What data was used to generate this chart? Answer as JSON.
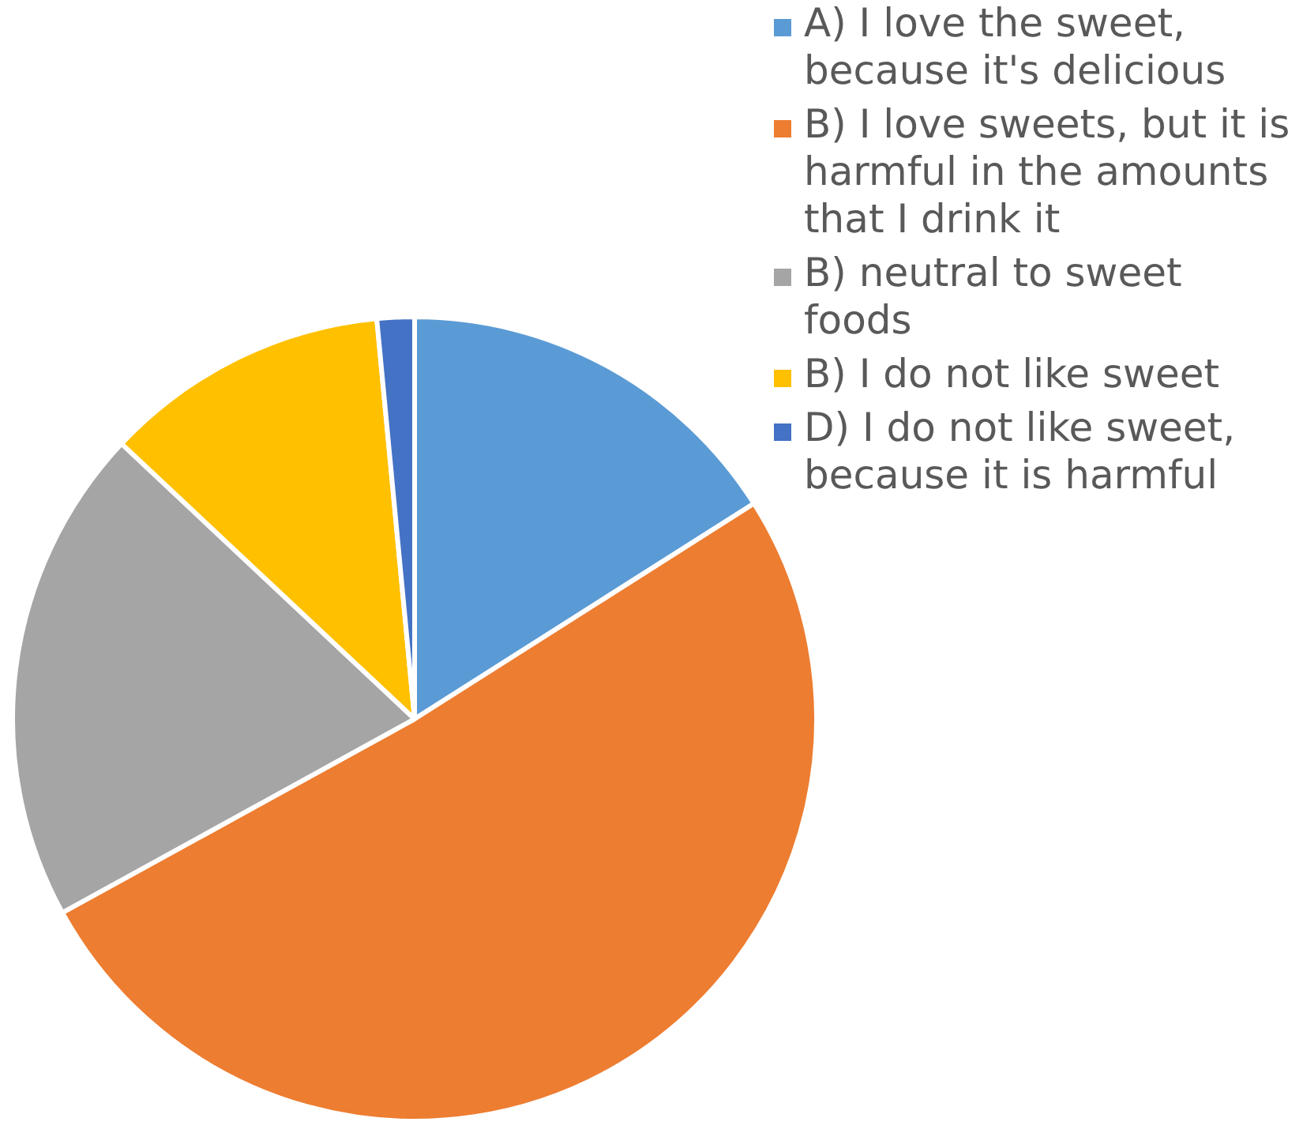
{
  "chart_data": {
    "type": "pie",
    "categories": [
      "A) I love the sweet, because it's delicious",
      "B) I love sweets, but it is harmful in the amounts that I drink it",
      "B) neutral to sweet foods",
      "B) I do not like sweet",
      "D) I do not like sweet, because it is harmful"
    ],
    "values": [
      16,
      51,
      20,
      11.5,
      1.5
    ],
    "colors": [
      "#5b9bd5",
      "#ed7d31",
      "#a5a5a5",
      "#ffc000",
      "#4472c4"
    ],
    "legend": "top right"
  }
}
